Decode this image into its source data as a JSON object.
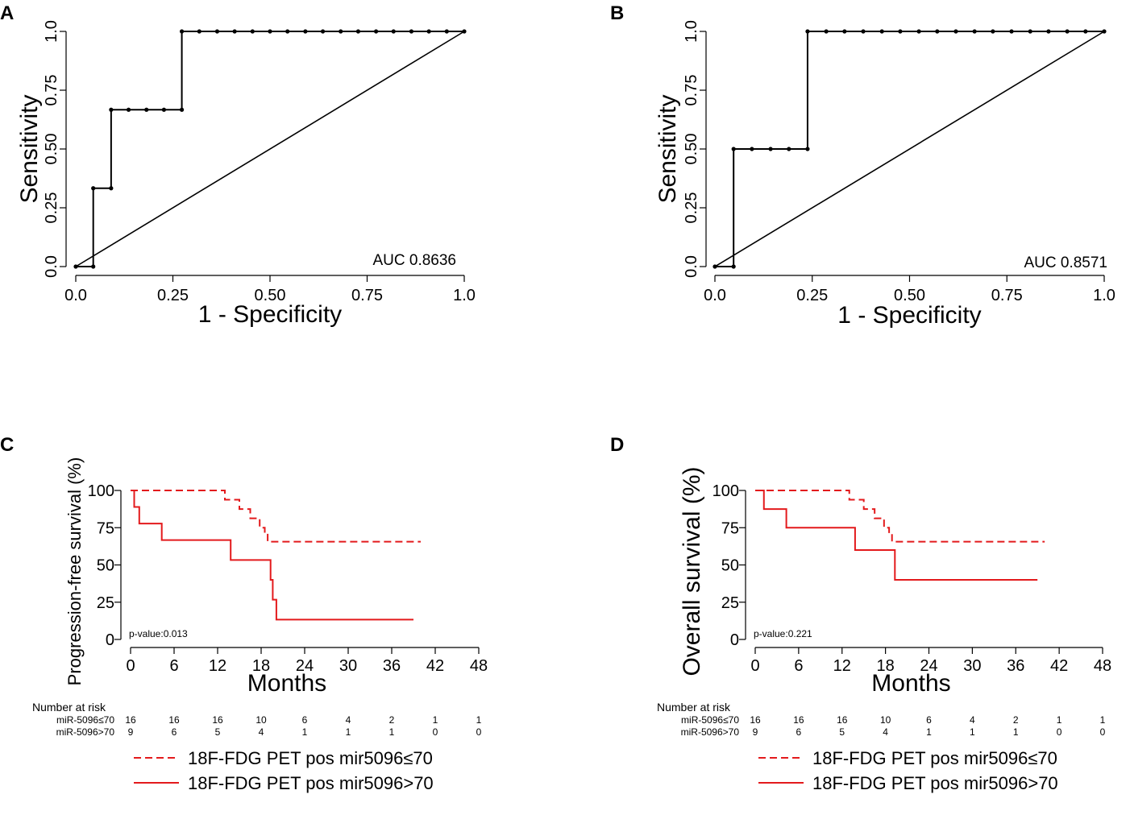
{
  "chart_data": [
    {
      "type": "line",
      "panel": "A",
      "xlabel": "1 - Specificity",
      "ylabel": "Sensitivity",
      "xlim": [
        0,
        1
      ],
      "ylim": [
        0,
        1
      ],
      "xticks": [
        "0.0",
        "0.25",
        "0.50",
        "0.75",
        "1.0"
      ],
      "yticks": [
        "0.0",
        "0.25",
        "0.50",
        "0.75",
        "1.0"
      ],
      "annotation": "AUC 0.8636",
      "series": [
        {
          "name": "ROC",
          "points": [
            [
              0,
              0
            ],
            [
              0.045,
              0
            ],
            [
              0.045,
              0.333
            ],
            [
              0.091,
              0.333
            ],
            [
              0.091,
              0.667
            ],
            [
              0.136,
              0.667
            ],
            [
              0.182,
              0.667
            ],
            [
              0.227,
              0.667
            ],
            [
              0.273,
              0.667
            ],
            [
              0.273,
              1
            ],
            [
              0.318,
              1
            ],
            [
              0.364,
              1
            ],
            [
              0.409,
              1
            ],
            [
              0.455,
              1
            ],
            [
              0.5,
              1
            ],
            [
              0.545,
              1
            ],
            [
              0.591,
              1
            ],
            [
              0.636,
              1
            ],
            [
              0.682,
              1
            ],
            [
              0.727,
              1
            ],
            [
              0.773,
              1
            ],
            [
              0.818,
              1
            ],
            [
              0.864,
              1
            ],
            [
              0.909,
              1
            ],
            [
              0.955,
              1
            ],
            [
              1,
              1
            ]
          ],
          "markers": [
            [
              0,
              0
            ],
            [
              0.045,
              0
            ],
            [
              0.045,
              0.333
            ],
            [
              0.091,
              0.333
            ],
            [
              0.091,
              0.667
            ],
            [
              0.136,
              0.667
            ],
            [
              0.182,
              0.667
            ],
            [
              0.227,
              0.667
            ],
            [
              0.273,
              0.667
            ],
            [
              0.273,
              1
            ],
            [
              0.318,
              1
            ],
            [
              0.364,
              1
            ],
            [
              0.409,
              1
            ],
            [
              0.455,
              1
            ],
            [
              0.5,
              1
            ],
            [
              0.545,
              1
            ],
            [
              0.591,
              1
            ],
            [
              0.636,
              1
            ],
            [
              0.682,
              1
            ],
            [
              0.727,
              1
            ],
            [
              0.773,
              1
            ],
            [
              0.818,
              1
            ],
            [
              0.864,
              1
            ],
            [
              0.909,
              1
            ],
            [
              0.955,
              1
            ],
            [
              1,
              1
            ]
          ]
        },
        {
          "name": "reference",
          "points": [
            [
              0,
              0
            ],
            [
              1,
              1
            ]
          ]
        }
      ]
    },
    {
      "type": "line",
      "panel": "B",
      "xlabel": "1 - Specificity",
      "ylabel": "Sensitivity",
      "xlim": [
        0,
        1
      ],
      "ylim": [
        0,
        1
      ],
      "xticks": [
        "0.0",
        "0.25",
        "0.50",
        "0.75",
        "1.0"
      ],
      "yticks": [
        "0.0",
        "0.25",
        "0.50",
        "0.75",
        "1.0"
      ],
      "annotation": "AUC 0.8571",
      "series": [
        {
          "name": "ROC",
          "points": [
            [
              0,
              0
            ],
            [
              0.048,
              0
            ],
            [
              0.048,
              0.5
            ],
            [
              0.095,
              0.5
            ],
            [
              0.143,
              0.5
            ],
            [
              0.19,
              0.5
            ],
            [
              0.238,
              0.5
            ],
            [
              0.238,
              1
            ],
            [
              0.286,
              1
            ],
            [
              0.333,
              1
            ],
            [
              0.381,
              1
            ],
            [
              0.429,
              1
            ],
            [
              0.476,
              1
            ],
            [
              0.524,
              1
            ],
            [
              0.571,
              1
            ],
            [
              0.619,
              1
            ],
            [
              0.667,
              1
            ],
            [
              0.714,
              1
            ],
            [
              0.762,
              1
            ],
            [
              0.81,
              1
            ],
            [
              0.857,
              1
            ],
            [
              0.905,
              1
            ],
            [
              0.952,
              1
            ],
            [
              1,
              1
            ]
          ],
          "markers": [
            [
              0,
              0
            ],
            [
              0.048,
              0
            ],
            [
              0.048,
              0.5
            ],
            [
              0.095,
              0.5
            ],
            [
              0.143,
              0.5
            ],
            [
              0.19,
              0.5
            ],
            [
              0.238,
              0.5
            ],
            [
              0.238,
              1
            ],
            [
              0.286,
              1
            ],
            [
              0.333,
              1
            ],
            [
              0.381,
              1
            ],
            [
              0.429,
              1
            ],
            [
              0.476,
              1
            ],
            [
              0.524,
              1
            ],
            [
              0.571,
              1
            ],
            [
              0.619,
              1
            ],
            [
              0.667,
              1
            ],
            [
              0.714,
              1
            ],
            [
              0.762,
              1
            ],
            [
              0.81,
              1
            ],
            [
              0.857,
              1
            ],
            [
              0.905,
              1
            ],
            [
              0.952,
              1
            ],
            [
              1,
              1
            ]
          ]
        },
        {
          "name": "reference",
          "points": [
            [
              0,
              0
            ],
            [
              1,
              1
            ]
          ]
        }
      ]
    },
    {
      "type": "line",
      "panel": "C",
      "xlabel": "Months",
      "ylabel": "Progression-free survival (%)",
      "xlim": [
        0,
        48
      ],
      "ylim": [
        0,
        100
      ],
      "xticks": [
        "0",
        "6",
        "12",
        "18",
        "24",
        "30",
        "36",
        "42",
        "48"
      ],
      "yticks": [
        "0",
        "25",
        "50",
        "75",
        "100"
      ],
      "annotation": "p-value:0.013",
      "series": [
        {
          "name": "18F-FDG PET pos mir5096≤70",
          "dashed": true,
          "points": [
            [
              0,
              100
            ],
            [
              13,
              100
            ],
            [
              13,
              93.8
            ],
            [
              15,
              93.8
            ],
            [
              15,
              87.5
            ],
            [
              16.5,
              87.5
            ],
            [
              16.5,
              81.3
            ],
            [
              17.8,
              81.3
            ],
            [
              17.8,
              75
            ],
            [
              18.5,
              75
            ],
            [
              18.5,
              71
            ],
            [
              18.9,
              71
            ],
            [
              18.9,
              65.6
            ],
            [
              40,
              65.6
            ]
          ]
        },
        {
          "name": "18F-FDG PET pos mir5096>70",
          "dashed": false,
          "points": [
            [
              0,
              100
            ],
            [
              0.5,
              100
            ],
            [
              0.5,
              88.9
            ],
            [
              1.2,
              88.9
            ],
            [
              1.2,
              77.8
            ],
            [
              4.3,
              77.8
            ],
            [
              4.3,
              66.7
            ],
            [
              13.8,
              66.7
            ],
            [
              13.8,
              53.3
            ],
            [
              19.3,
              53.3
            ],
            [
              19.3,
              40
            ],
            [
              19.6,
              40
            ],
            [
              19.6,
              26.7
            ],
            [
              20.1,
              26.7
            ],
            [
              20.1,
              13.3
            ],
            [
              39,
              13.3
            ]
          ]
        }
      ],
      "risk_table": {
        "title": "Number at risk",
        "times": [
          0,
          6,
          12,
          18,
          24,
          30,
          36,
          42,
          48
        ],
        "rows": [
          {
            "label": "miR-5096≤70",
            "values": [
              "16",
              "16",
              "16",
              "10",
              "6",
              "4",
              "2",
              "1",
              "1"
            ]
          },
          {
            "label": "miR-5096>70",
            "values": [
              "9",
              "6",
              "5",
              "4",
              "1",
              "1",
              "1",
              "0",
              "0"
            ]
          }
        ]
      },
      "legend": [
        "18F-FDG PET pos mir5096≤70",
        "18F-FDG PET pos mir5096>70"
      ]
    },
    {
      "type": "line",
      "panel": "D",
      "xlabel": "Months",
      "ylabel": "Overall survival (%)",
      "xlim": [
        0,
        48
      ],
      "ylim": [
        0,
        100
      ],
      "xticks": [
        "0",
        "6",
        "12",
        "18",
        "24",
        "30",
        "36",
        "42",
        "48"
      ],
      "yticks": [
        "0",
        "25",
        "50",
        "75",
        "100"
      ],
      "annotation": "p-value:0.221",
      "series": [
        {
          "name": "18F-FDG PET pos mir5096≤70",
          "dashed": true,
          "points": [
            [
              0,
              100
            ],
            [
              13,
              100
            ],
            [
              13,
              93.8
            ],
            [
              15,
              93.8
            ],
            [
              15,
              87.5
            ],
            [
              16.5,
              87.5
            ],
            [
              16.5,
              81.3
            ],
            [
              17.8,
              81.3
            ],
            [
              17.8,
              75
            ],
            [
              18.5,
              75
            ],
            [
              18.5,
              71
            ],
            [
              18.9,
              71
            ],
            [
              18.9,
              65.6
            ],
            [
              40,
              65.6
            ]
          ]
        },
        {
          "name": "18F-FDG PET pos mir5096>70",
          "dashed": false,
          "points": [
            [
              0,
              100
            ],
            [
              1.2,
              100
            ],
            [
              1.2,
              87.5
            ],
            [
              4.3,
              87.5
            ],
            [
              4.3,
              75
            ],
            [
              13.8,
              75
            ],
            [
              13.8,
              60
            ],
            [
              19.3,
              60
            ],
            [
              19.3,
              40
            ],
            [
              39,
              40
            ]
          ]
        }
      ],
      "risk_table": {
        "title": "Number at risk",
        "times": [
          0,
          6,
          12,
          18,
          24,
          30,
          36,
          42,
          48
        ],
        "rows": [
          {
            "label": "miR-5096≤70",
            "values": [
              "16",
              "16",
              "16",
              "10",
              "6",
              "4",
              "2",
              "1",
              "1"
            ]
          },
          {
            "label": "miR-5096>70",
            "values": [
              "9",
              "6",
              "5",
              "4",
              "1",
              "1",
              "1",
              "0",
              "0"
            ]
          }
        ]
      },
      "legend": [
        "18F-FDG PET pos mir5096≤70",
        "18F-FDG PET pos mir5096>70"
      ]
    }
  ],
  "colors": {
    "roc": "#000000",
    "survival": "#e31a1c"
  }
}
